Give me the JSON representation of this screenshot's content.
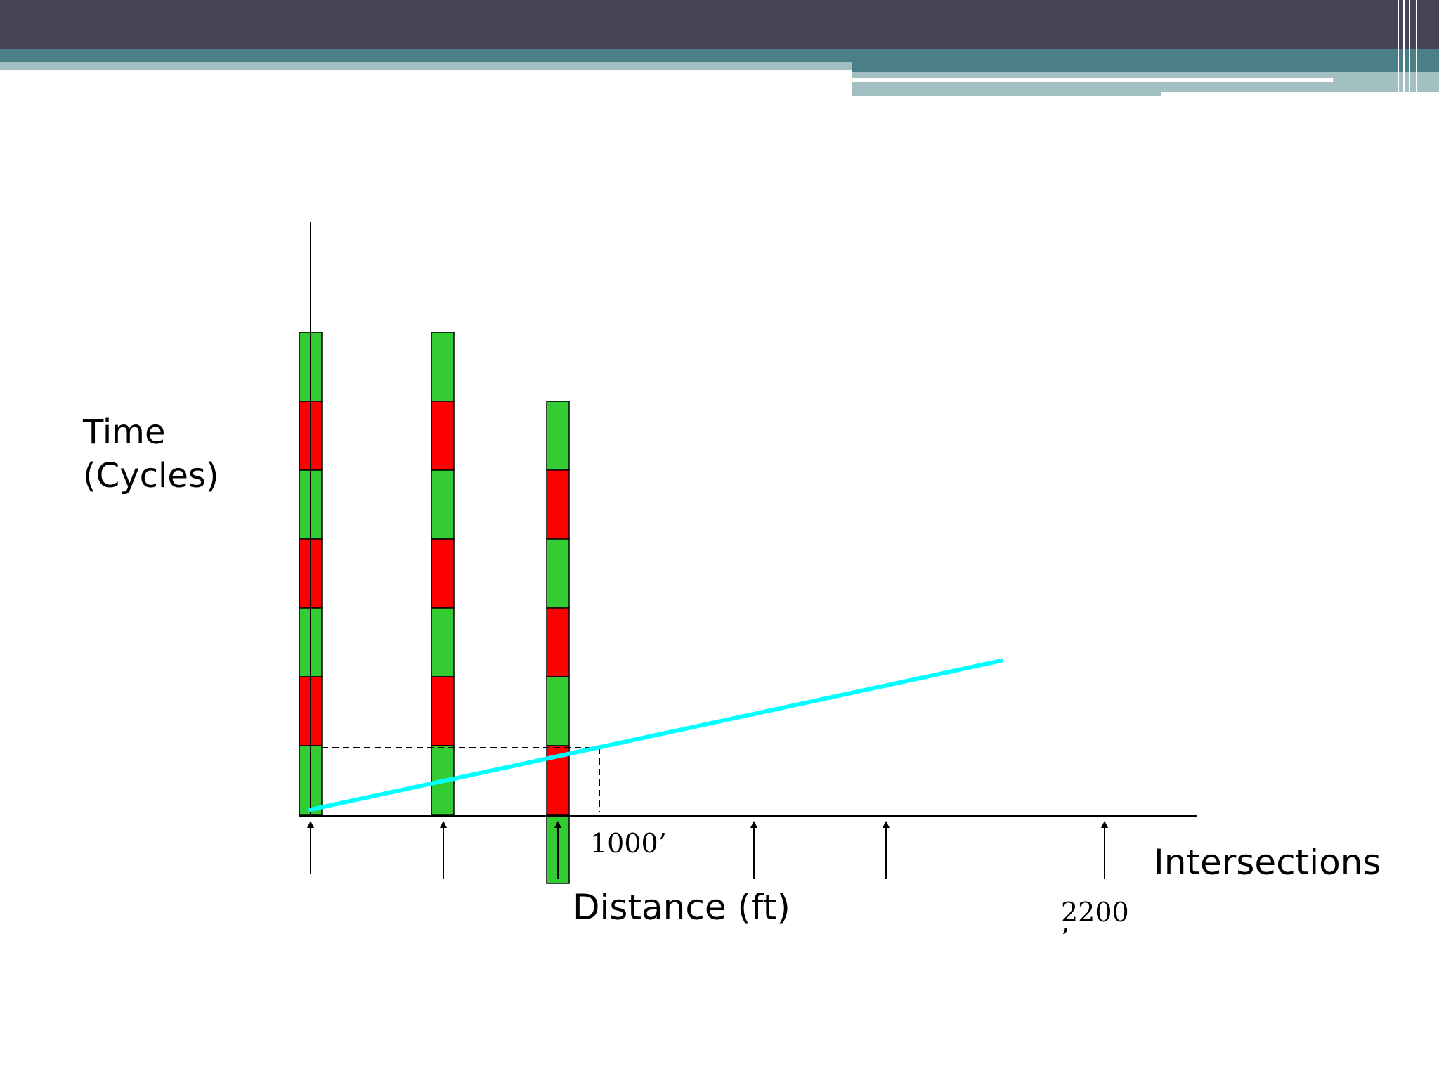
{
  "labels": {
    "y_axis_line1": "Time",
    "y_axis_line2": "(Cycles)",
    "x_axis": "Distance (ft)",
    "intersections": "Intersections",
    "mark_1000": "1000’",
    "mark_2200": "2200",
    "mark_2200_tick": "’"
  },
  "colors": {
    "header_dark": "#464558",
    "header_teal": "#4a7f87",
    "header_light": "#a2c0c2",
    "green": "#33cc33",
    "red": "#ff0000",
    "trajectory": "#00ffff",
    "axis": "#000000"
  },
  "signals": [
    {
      "name": "signal-1",
      "phases": [
        "green",
        "red",
        "green",
        "red",
        "green",
        "red",
        "green"
      ]
    },
    {
      "name": "signal-2",
      "phases": [
        "green",
        "red",
        "green",
        "red",
        "green",
        "red",
        "green"
      ]
    },
    {
      "name": "signal-3",
      "phases": [
        "green",
        "red",
        "green",
        "red",
        "green",
        "red",
        "green"
      ]
    }
  ],
  "intersection_markers": 6
}
